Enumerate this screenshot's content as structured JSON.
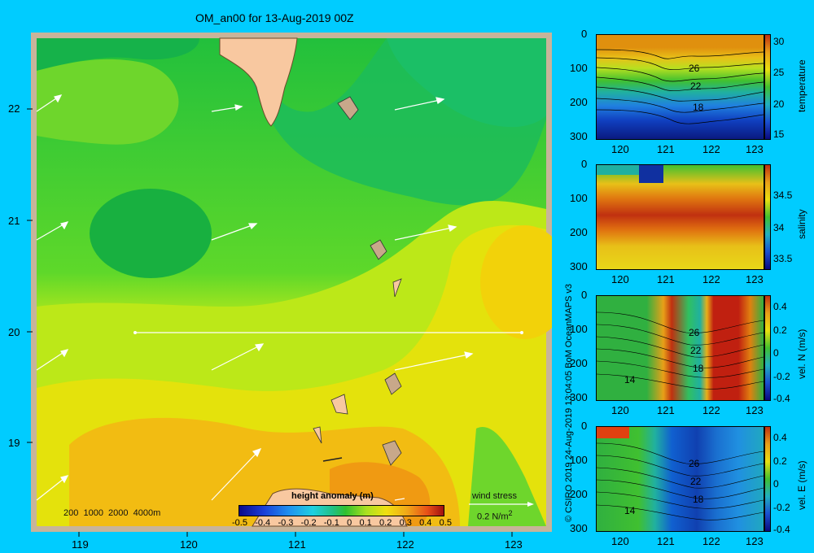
{
  "title": "OM_an00 for 13-Aug-2019 00Z",
  "map": {
    "lon_ticks": [
      "119",
      "120",
      "121",
      "122",
      "123"
    ],
    "lat_ticks": [
      "22",
      "21",
      "20",
      "19"
    ],
    "depth_legend": "200  1000  2000  4000m",
    "colorbar_label": "height anomaly (m)",
    "colorbar_ticks": [
      "-0.5",
      "-0.4",
      "-0.3",
      "-0.2",
      "-0.1",
      "0",
      "0.1",
      "0.2",
      "0.3",
      "0.4",
      "0.5"
    ],
    "colorbar_range": [
      -0.5,
      0.5
    ],
    "wind_label": "wind stress",
    "wind_scale": "0.2 N/m",
    "wind_scale_exp": "2",
    "section_latitude": 20,
    "section_lon_range": [
      119.5,
      123.2
    ]
  },
  "credit": "© CSIRO 2019   24-Aug-2019 13:04:05 BoM OceanMAPS v3",
  "panels": [
    {
      "name": "temperature",
      "y_ticks": [
        "0",
        "100",
        "200",
        "300"
      ],
      "x_ticks": [
        "120",
        "121",
        "122",
        "123"
      ],
      "cb_ticks": [
        "30",
        "25",
        "20",
        "15"
      ],
      "cb_label": "temperature",
      "contours": [
        "26",
        "22",
        "18"
      ]
    },
    {
      "name": "salinity",
      "y_ticks": [
        "0",
        "100",
        "200",
        "300"
      ],
      "x_ticks": [
        "120",
        "121",
        "122",
        "123"
      ],
      "cb_ticks": [
        "34.5",
        "34",
        "33.5"
      ],
      "cb_label": "salinity"
    },
    {
      "name": "vel-n",
      "y_ticks": [
        "0",
        "100",
        "200",
        "300"
      ],
      "x_ticks": [
        "120",
        "121",
        "122",
        "123"
      ],
      "cb_ticks": [
        "0.4",
        "0.2",
        "0",
        "-0.2",
        "-0.4"
      ],
      "cb_label": "vel. N (m/s)",
      "contours": [
        "26",
        "22",
        "18",
        "14"
      ]
    },
    {
      "name": "vel-e",
      "y_ticks": [
        "0",
        "100",
        "200",
        "300"
      ],
      "x_ticks": [
        "120",
        "121",
        "122",
        "123"
      ],
      "cb_ticks": [
        "0.4",
        "0.2",
        "0",
        "-0.2",
        "-0.4"
      ],
      "cb_label": "vel. E (m/s)",
      "contours": [
        "26",
        "22",
        "18",
        "14"
      ]
    }
  ]
}
